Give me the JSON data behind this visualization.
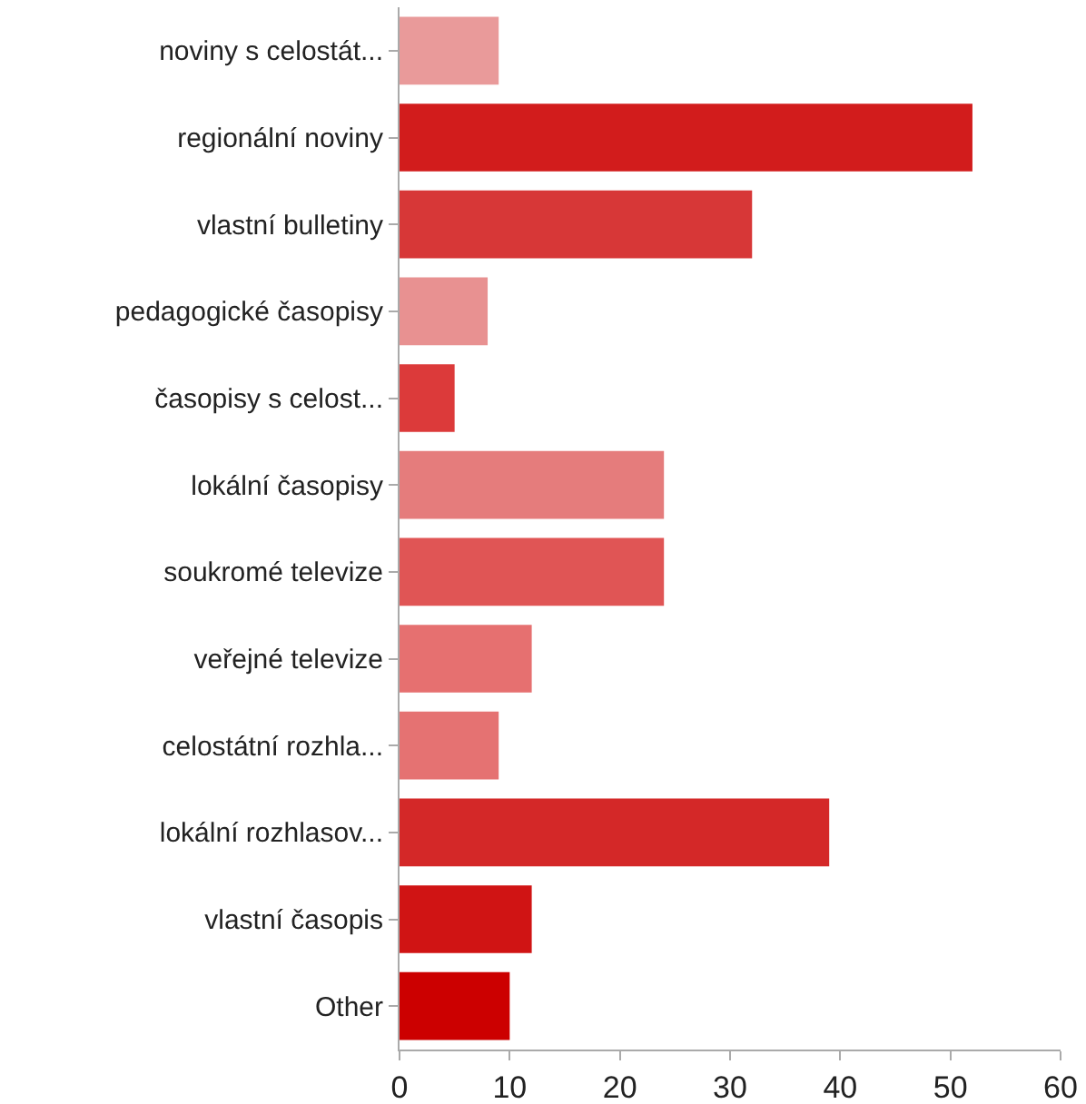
{
  "chart_data": {
    "type": "bar",
    "orientation": "horizontal",
    "categories": [
      "noviny s celostát...",
      "regionální noviny",
      "vlastní bulletiny",
      "pedagogické časopisy",
      "časopisy s celost...",
      "lokální časopisy",
      "soukromé televize",
      "veřejné televize",
      "celostátní rozhla...",
      "lokální rozhlasov...",
      "vlastní časopis",
      "Other"
    ],
    "values": [
      9,
      52,
      32,
      8,
      5,
      24,
      24,
      12,
      9,
      39,
      12,
      10
    ],
    "colors": [
      "#e99a9a",
      "#d21c1c",
      "#d73737",
      "#e89191",
      "#dc3a3a",
      "#e57c7c",
      "#e05555",
      "#e67070",
      "#e57272",
      "#d42828",
      "#d01414",
      "#cc0000"
    ],
    "xlim": [
      0,
      60
    ],
    "xticks": [
      0,
      10,
      20,
      30,
      40,
      50,
      60
    ],
    "grid": false
  }
}
